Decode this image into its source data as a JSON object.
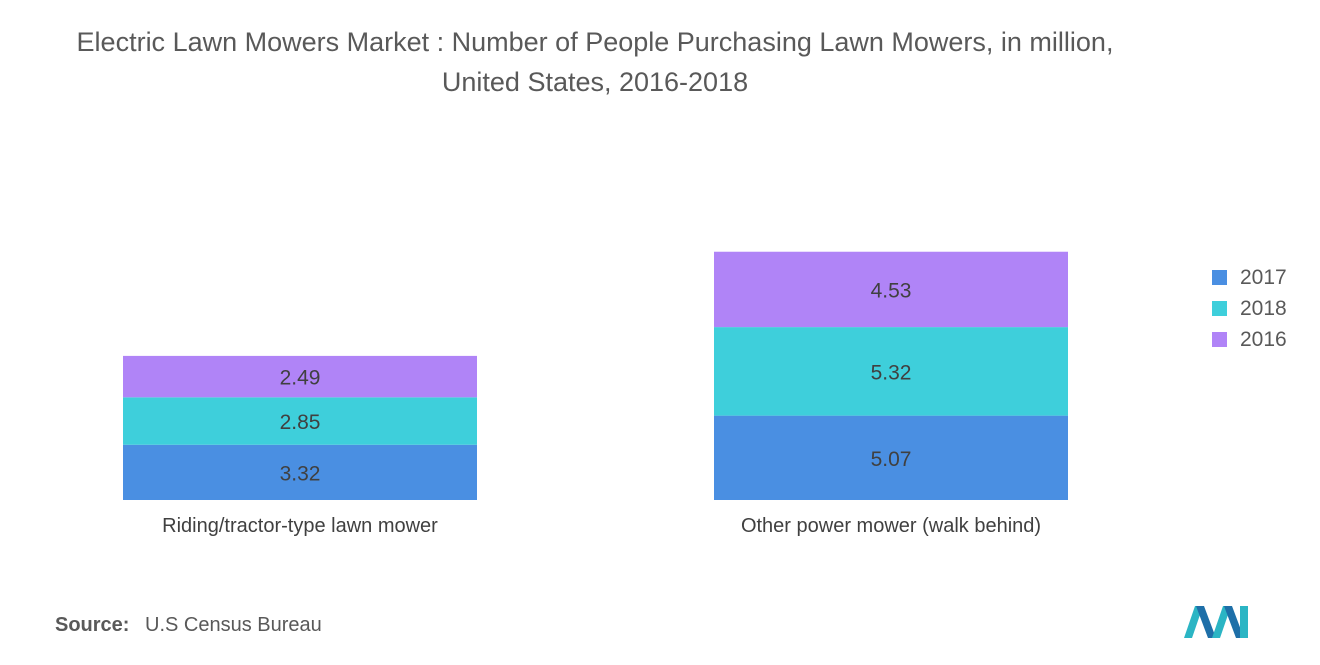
{
  "title": "Electric Lawn Mowers Market : Number of People Purchasing Lawn Mowers, in million, United States, 2016-2018",
  "source": {
    "label": "Source:",
    "text": "U.S Census Bureau"
  },
  "legend": [
    {
      "name": "2017",
      "color": "#4a8fe2"
    },
    {
      "name": "2018",
      "color": "#3ecfdb"
    },
    {
      "name": "2016",
      "color": "#b084f7"
    }
  ],
  "chart_data": {
    "type": "bar",
    "stacked": true,
    "title": "Electric Lawn Mowers Market : Number of People Purchasing Lawn Mowers, in million, United States, 2016-2018",
    "categories": [
      "Riding/tractor-type lawn mower",
      "Other power mower (walk behind)"
    ],
    "series": [
      {
        "name": "2017",
        "color": "#4a8fe2",
        "values": [
          3.32,
          5.07
        ]
      },
      {
        "name": "2018",
        "color": "#3ecfdb",
        "values": [
          2.85,
          5.32
        ]
      },
      {
        "name": "2016",
        "color": "#b084f7",
        "values": [
          2.49,
          4.53
        ]
      }
    ],
    "data_labels": true,
    "grid": false,
    "legend_position": "right"
  },
  "logo": {
    "icon": "mordor-intelligence-logo-icon"
  }
}
